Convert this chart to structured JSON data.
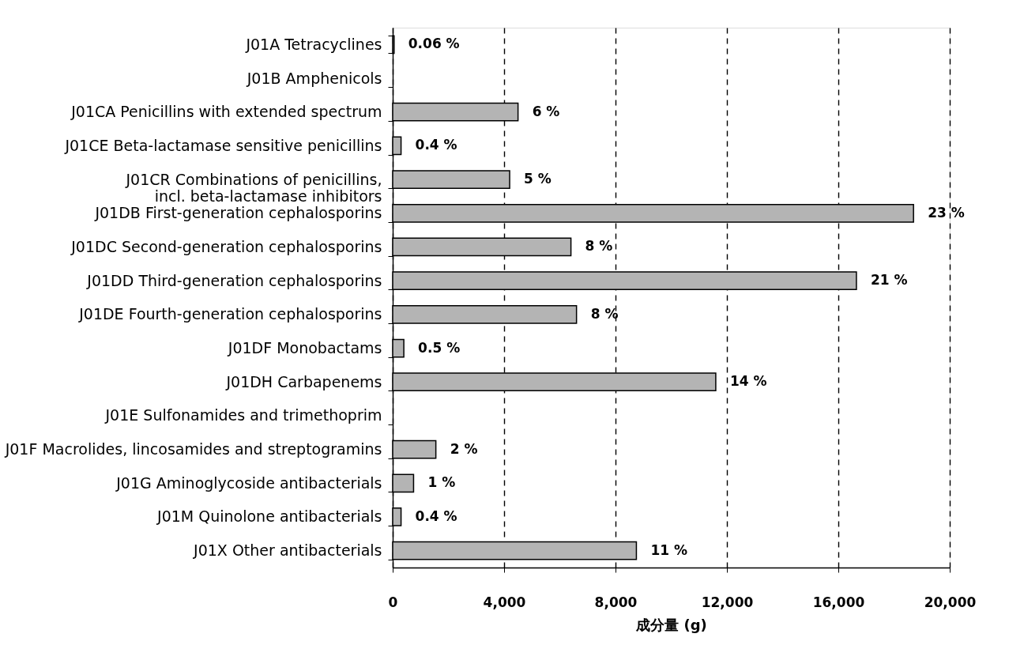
{
  "chart_data": {
    "type": "bar",
    "orientation": "horizontal",
    "categories": [
      "J01A Tetracyclines",
      "J01B Amphenicols",
      "J01CA Penicillins with extended spectrum",
      "J01CE Beta-lactamase sensitive penicillins",
      "J01CR Combinations of penicillins,\nincl. beta-lactamase inhibitors",
      "J01DB First-generation cephalosporins",
      "J01DC Second-generation cephalosporins",
      "J01DD Third-generation cephalosporins",
      "J01DE Fourth-generation cephalosporins",
      "J01DF Monobactams",
      "J01DH Carbapenems",
      "J01E Sulfonamides and trimethoprim",
      "J01F Macrolides, lincosamides and streptogramins",
      "J01G Aminoglycoside antibacterials",
      "J01M Quinolone antibacterials",
      "J01X Other antibacterials"
    ],
    "values": [
      50,
      null,
      4500,
      300,
      4200,
      18700,
      6400,
      16650,
      6600,
      400,
      11600,
      null,
      1550,
      750,
      300,
      8750
    ],
    "color": "#b4b4b4",
    "xlabel": "成分量 (g)",
    "xlim": [
      0,
      20000
    ],
    "xticks": [
      0,
      {
        "value": 4000,
        "label": "4,000"
      },
      {
        "value": 8000,
        "label": "8,000"
      },
      {
        "value": 12000,
        "label": "12,000"
      },
      {
        "value": 16000,
        "label": "16,000"
      },
      {
        "value": 20000,
        "label": "20,000"
      }
    ],
    "grid": "x",
    "annotations": [
      {
        "text": "0.06 %",
        "x": 50,
        "y": "J01A Tetracyclines"
      },
      {
        "text": "6 %",
        "x": 4500,
        "y": "J01CA Penicillins with extended spectrum"
      },
      {
        "text": "0.4 %",
        "x": 300,
        "y": "J01CE Beta-lactamase sensitive penicillins"
      },
      {
        "text": "5 %",
        "x": 4200,
        "y": "J01CR Combinations of penicillins,\nincl. beta-lactamase inhibitors"
      },
      {
        "text": "23 %",
        "x": 18700,
        "y": "J01DB First-generation cephalosporins"
      },
      {
        "text": "8 %",
        "x": 6400,
        "y": "J01DC Second-generation cephalosporins"
      },
      {
        "text": "21 %",
        "x": 16650,
        "y": "J01DD Third-generation cephalosporins"
      },
      {
        "text": "8 %",
        "x": 6600,
        "y": "J01DE Fourth-generation cephalosporins"
      },
      {
        "text": "0.5 %",
        "x": 400,
        "y": "J01DF Monobactams"
      },
      {
        "text": "14 %",
        "x": 11600,
        "y": "J01DH Carbapenems"
      },
      {
        "text": "2 %",
        "x": 1550,
        "y": "J01F Macrolides, lincosamides and streptogramins"
      },
      {
        "text": "1 %",
        "x": 750,
        "y": "J01G Aminoglycoside antibacterials"
      },
      {
        "text": "0.4 %",
        "x": 300,
        "y": "J01M Quinolone antibacterials"
      },
      {
        "text": "11 %",
        "x": 8750,
        "y": "J01X Other antibacterials"
      }
    ]
  }
}
